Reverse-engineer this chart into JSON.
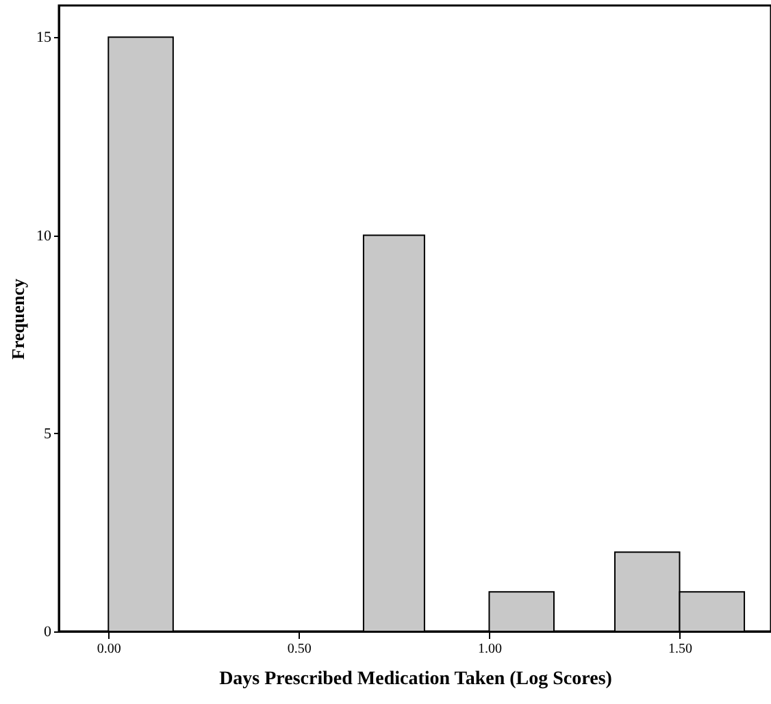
{
  "chart_data": {
    "type": "histogram",
    "xlabel": "Days Prescribed Medication Taken (Log Scores)",
    "ylabel": "Frequency",
    "bins": [
      0,
      0.17,
      0.67,
      0.83,
      1,
      1.17,
      1.33,
      1.5,
      1.67
    ],
    "values": [
      15,
      0,
      10,
      0,
      1,
      0,
      2,
      1
    ],
    "color": "#c8c8c8",
    "xlim": [
      -0.13,
      1.74
    ],
    "xticks": [
      {
        "value": 0,
        "label": "0.00"
      },
      {
        "value": 0.5,
        "label": "0.50"
      },
      {
        "value": 1,
        "label": "1.00"
      },
      {
        "value": 1.5,
        "label": "1.50"
      }
    ],
    "ylim": [
      0,
      15.8
    ],
    "yticks": [
      0,
      5,
      10,
      15
    ],
    "grid": false
  }
}
